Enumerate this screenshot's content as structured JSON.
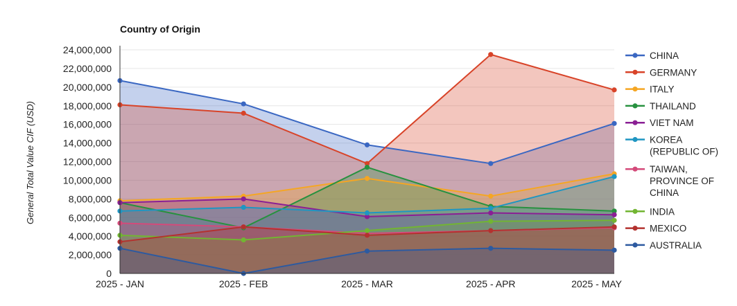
{
  "chart_data": {
    "type": "area",
    "title": "Country of Origin",
    "xlabel": "",
    "ylabel": "General Total Value CIF (USD)",
    "categories": [
      "2025 - JAN",
      "2025 - FEB",
      "2025 - MAR",
      "2025 - APR",
      "2025 - MAY"
    ],
    "ylim": [
      0,
      24000000
    ],
    "yticks": [
      0,
      2000000,
      4000000,
      6000000,
      8000000,
      10000000,
      12000000,
      14000000,
      16000000,
      18000000,
      20000000,
      22000000,
      24000000
    ],
    "ytick_labels": [
      "0",
      "2,000,000",
      "4,000,000",
      "6,000,000",
      "8,000,000",
      "10,000,000",
      "12,000,000",
      "14,000,000",
      "16,000,000",
      "18,000,000",
      "20,000,000",
      "22,000,000",
      "24,000,000"
    ],
    "grid": true,
    "legend_position": "right",
    "stacked": false,
    "series": [
      {
        "name": "CHINA",
        "color": "#3a67c2",
        "values": [
          20700000,
          18200000,
          13800000,
          11800000,
          16100000
        ]
      },
      {
        "name": "GERMANY",
        "color": "#d84328",
        "values": [
          18100000,
          17200000,
          11800000,
          23500000,
          19700000
        ]
      },
      {
        "name": "ITALY",
        "color": "#f5a623",
        "values": [
          7800000,
          8300000,
          10200000,
          8300000,
          10700000
        ]
      },
      {
        "name": "THAILAND",
        "color": "#27913f",
        "values": [
          7600000,
          4900000,
          11400000,
          7200000,
          6700000
        ]
      },
      {
        "name": "VIET NAM",
        "color": "#8a1f94",
        "values": [
          7600000,
          8000000,
          6100000,
          6500000,
          6300000
        ]
      },
      {
        "name": "KOREA (REPUBLIC OF)",
        "color": "#1f96c2",
        "values": [
          6700000,
          7100000,
          6500000,
          7000000,
          10400000
        ]
      },
      {
        "name": "TAIWAN, PROVINCE OF CHINA",
        "color": "#d44a7a",
        "values": [
          5400000,
          5000000,
          4300000,
          4600000,
          4900000
        ]
      },
      {
        "name": "INDIA",
        "color": "#72b532",
        "values": [
          4100000,
          3600000,
          4600000,
          5600000,
          5700000
        ]
      },
      {
        "name": "MEXICO",
        "color": "#b3322f",
        "values": [
          3400000,
          5000000,
          4100000,
          4600000,
          5000000
        ]
      },
      {
        "name": "AUSTRALIA",
        "color": "#2d5aa0",
        "values": [
          2700000,
          0,
          2400000,
          2700000,
          2500000
        ]
      }
    ]
  }
}
